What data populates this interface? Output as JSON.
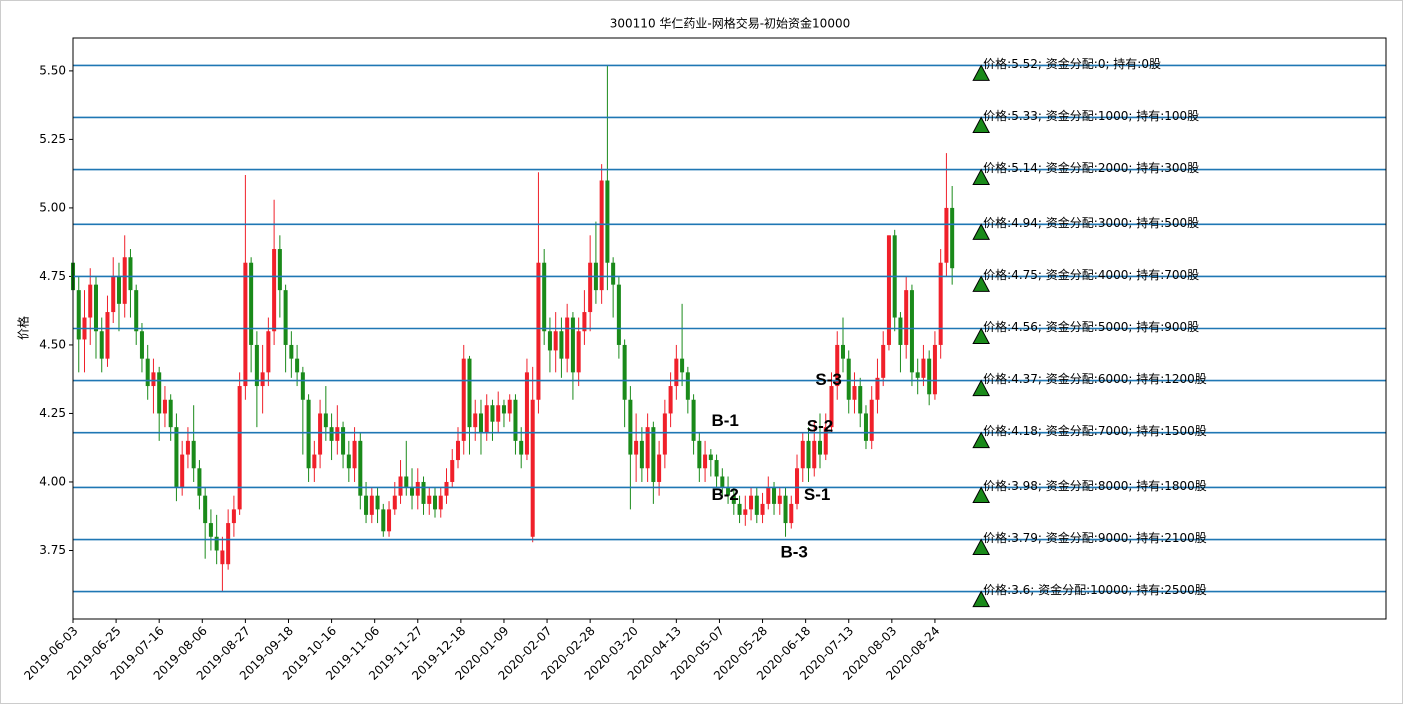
{
  "chart_data": {
    "type": "candlestick",
    "title": "300110 华仁药业-网格交易-初始资金10000",
    "y_label": "价格",
    "xlim": [
      0,
      457
    ],
    "xticks": [
      {
        "value": 0,
        "label": "2019-06-03"
      },
      {
        "value": 15,
        "label": "2019-06-25"
      },
      {
        "value": 30,
        "label": "2019-07-16"
      },
      {
        "value": 45,
        "label": "2019-08-06"
      },
      {
        "value": 60,
        "label": "2019-08-27"
      },
      {
        "value": 75,
        "label": "2019-09-18"
      },
      {
        "value": 90,
        "label": "2019-10-16"
      },
      {
        "value": 105,
        "label": "2019-11-06"
      },
      {
        "value": 120,
        "label": "2019-11-27"
      },
      {
        "value": 135,
        "label": "2019-12-18"
      },
      {
        "value": 150,
        "label": "2020-01-09"
      },
      {
        "value": 165,
        "label": "2020-02-07"
      },
      {
        "value": 180,
        "label": "2020-02-28"
      },
      {
        "value": 195,
        "label": "2020-03-20"
      },
      {
        "value": 210,
        "label": "2020-04-13"
      },
      {
        "value": 225,
        "label": "2020-05-07"
      },
      {
        "value": 240,
        "label": "2020-05-28"
      },
      {
        "value": 255,
        "label": "2020-06-18"
      },
      {
        "value": 270,
        "label": "2020-07-13"
      },
      {
        "value": 285,
        "label": "2020-08-03"
      },
      {
        "value": 300,
        "label": "2020-08-24"
      }
    ],
    "ylim": [
      3.5,
      5.62
    ],
    "yticks": [
      3.75,
      {
        "value": 4.0,
        "label": "4.00"
      },
      4.25,
      {
        "value": 4.5,
        "label": "4.50"
      },
      4.75,
      {
        "value": 5.0,
        "label": "5.00"
      },
      5.25,
      {
        "value": 5.5,
        "label": "5.50"
      }
    ],
    "up_color": "#f0202a",
    "down_color": "#1a8a1a",
    "level_color": "#1f77b4",
    "marker_color": "#1a8a1a",
    "candles": [
      [
        0,
        4.8,
        4.9,
        4.55,
        4.7
      ],
      [
        2,
        4.7,
        4.75,
        4.4,
        4.52
      ],
      [
        4,
        4.52,
        4.7,
        4.4,
        4.6
      ],
      [
        6,
        4.6,
        4.78,
        4.5,
        4.72
      ],
      [
        8,
        4.72,
        4.75,
        4.45,
        4.55
      ],
      [
        10,
        4.55,
        4.6,
        4.4,
        4.45
      ],
      [
        12,
        4.45,
        4.68,
        4.42,
        4.62
      ],
      [
        14,
        4.62,
        4.82,
        4.58,
        4.75
      ],
      [
        16,
        4.75,
        4.8,
        4.55,
        4.65
      ],
      [
        18,
        4.65,
        4.9,
        4.6,
        4.82
      ],
      [
        20,
        4.82,
        4.85,
        4.6,
        4.7
      ],
      [
        22,
        4.7,
        4.72,
        4.5,
        4.55
      ],
      [
        24,
        4.55,
        4.58,
        4.4,
        4.45
      ],
      [
        26,
        4.45,
        4.5,
        4.3,
        4.35
      ],
      [
        28,
        4.35,
        4.45,
        4.25,
        4.4
      ],
      [
        30,
        4.4,
        4.42,
        4.15,
        4.25
      ],
      [
        32,
        4.25,
        4.35,
        4.2,
        4.3
      ],
      [
        34,
        4.3,
        4.32,
        4.15,
        4.2
      ],
      [
        36,
        4.2,
        4.25,
        3.93,
        3.98
      ],
      [
        38,
        3.98,
        4.15,
        3.95,
        4.1
      ],
      [
        40,
        4.1,
        4.2,
        4.05,
        4.15
      ],
      [
        42,
        4.15,
        4.28,
        4.0,
        4.05
      ],
      [
        44,
        4.05,
        4.08,
        3.9,
        3.95
      ],
      [
        46,
        3.95,
        3.98,
        3.72,
        3.85
      ],
      [
        48,
        3.85,
        3.9,
        3.75,
        3.8
      ],
      [
        50,
        3.8,
        3.88,
        3.7,
        3.75
      ],
      [
        52,
        3.7,
        3.8,
        3.6,
        3.75
      ],
      [
        54,
        3.7,
        3.9,
        3.68,
        3.85
      ],
      [
        56,
        3.85,
        3.95,
        3.8,
        3.9
      ],
      [
        58,
        3.9,
        4.4,
        3.88,
        4.35
      ],
      [
        60,
        4.35,
        5.12,
        4.3,
        4.8
      ],
      [
        62,
        4.8,
        4.82,
        4.4,
        4.5
      ],
      [
        64,
        4.5,
        4.55,
        4.2,
        4.35
      ],
      [
        66,
        4.35,
        4.5,
        4.25,
        4.4
      ],
      [
        68,
        4.4,
        4.6,
        4.35,
        4.55
      ],
      [
        70,
        4.55,
        5.03,
        4.5,
        4.85
      ],
      [
        72,
        4.85,
        4.9,
        4.6,
        4.7
      ],
      [
        74,
        4.7,
        4.72,
        4.4,
        4.5
      ],
      [
        76,
        4.5,
        4.55,
        4.38,
        4.45
      ],
      [
        78,
        4.45,
        4.5,
        4.35,
        4.4
      ],
      [
        80,
        4.4,
        4.42,
        4.1,
        4.3
      ],
      [
        82,
        4.3,
        4.32,
        4.0,
        4.05
      ],
      [
        84,
        4.05,
        4.15,
        4.0,
        4.1
      ],
      [
        86,
        4.1,
        4.3,
        4.05,
        4.25
      ],
      [
        88,
        4.25,
        4.35,
        4.15,
        4.2
      ],
      [
        90,
        4.2,
        4.25,
        4.08,
        4.15
      ],
      [
        92,
        4.15,
        4.28,
        4.1,
        4.2
      ],
      [
        94,
        4.2,
        4.22,
        4.05,
        4.1
      ],
      [
        96,
        4.1,
        4.15,
        4.0,
        4.05
      ],
      [
        98,
        4.05,
        4.2,
        4.0,
        4.15
      ],
      [
        100,
        4.15,
        4.18,
        3.9,
        3.95
      ],
      [
        102,
        3.95,
        4.0,
        3.85,
        3.88
      ],
      [
        104,
        3.88,
        3.98,
        3.85,
        3.95
      ],
      [
        106,
        3.95,
        3.98,
        3.85,
        3.9
      ],
      [
        108,
        3.9,
        3.92,
        3.8,
        3.82
      ],
      [
        110,
        3.82,
        3.93,
        3.8,
        3.9
      ],
      [
        112,
        3.9,
        4.0,
        3.88,
        3.95
      ],
      [
        114,
        3.95,
        4.08,
        3.92,
        4.02
      ],
      [
        116,
        4.02,
        4.15,
        3.95,
        3.98
      ],
      [
        118,
        3.98,
        4.05,
        3.9,
        3.95
      ],
      [
        120,
        3.95,
        4.05,
        3.9,
        4.0
      ],
      [
        122,
        4.0,
        4.02,
        3.88,
        3.92
      ],
      [
        124,
        3.92,
        3.98,
        3.88,
        3.95
      ],
      [
        126,
        3.95,
        3.98,
        3.87,
        3.9
      ],
      [
        128,
        3.9,
        3.98,
        3.87,
        3.95
      ],
      [
        130,
        3.95,
        4.05,
        3.92,
        4.0
      ],
      [
        132,
        4.0,
        4.12,
        3.98,
        4.08
      ],
      [
        134,
        4.08,
        4.2,
        4.05,
        4.15
      ],
      [
        136,
        4.15,
        4.5,
        4.1,
        4.45
      ],
      [
        138,
        4.45,
        4.46,
        4.1,
        4.2
      ],
      [
        140,
        4.2,
        4.3,
        4.15,
        4.25
      ],
      [
        142,
        4.25,
        4.3,
        4.1,
        4.18
      ],
      [
        144,
        4.18,
        4.32,
        4.15,
        4.28
      ],
      [
        146,
        4.28,
        4.3,
        4.15,
        4.22
      ],
      [
        148,
        4.22,
        4.33,
        4.18,
        4.28
      ],
      [
        150,
        4.28,
        4.3,
        4.2,
        4.25
      ],
      [
        152,
        4.25,
        4.32,
        4.22,
        4.3
      ],
      [
        154,
        4.3,
        4.32,
        4.1,
        4.15
      ],
      [
        156,
        4.15,
        4.2,
        4.05,
        4.1
      ],
      [
        158,
        4.1,
        4.45,
        4.08,
        4.4
      ],
      [
        160,
        3.8,
        4.42,
        3.78,
        4.3
      ],
      [
        162,
        4.3,
        5.13,
        4.25,
        4.8
      ],
      [
        164,
        4.8,
        4.85,
        4.5,
        4.55
      ],
      [
        166,
        4.55,
        4.6,
        4.4,
        4.48
      ],
      [
        168,
        4.48,
        4.62,
        4.4,
        4.55
      ],
      [
        170,
        4.55,
        4.6,
        4.38,
        4.45
      ],
      [
        172,
        4.45,
        4.65,
        4.4,
        4.6
      ],
      [
        174,
        4.6,
        4.62,
        4.3,
        4.4
      ],
      [
        176,
        4.4,
        4.6,
        4.35,
        4.55
      ],
      [
        178,
        4.55,
        4.7,
        4.5,
        4.62
      ],
      [
        180,
        4.62,
        4.9,
        4.55,
        4.8
      ],
      [
        182,
        4.8,
        4.95,
        4.65,
        4.7
      ],
      [
        184,
        4.7,
        5.16,
        4.65,
        5.1
      ],
      [
        186,
        5.1,
        5.52,
        4.7,
        4.8
      ],
      [
        188,
        4.8,
        4.82,
        4.6,
        4.72
      ],
      [
        190,
        4.72,
        4.75,
        4.45,
        4.5
      ],
      [
        192,
        4.5,
        4.52,
        4.2,
        4.3
      ],
      [
        194,
        4.3,
        4.35,
        3.9,
        4.1
      ],
      [
        196,
        4.1,
        4.25,
        4.0,
        4.15
      ],
      [
        198,
        4.15,
        4.2,
        4.0,
        4.05
      ],
      [
        200,
        4.05,
        4.25,
        4.0,
        4.2
      ],
      [
        202,
        4.2,
        4.22,
        3.92,
        4.0
      ],
      [
        204,
        4.0,
        4.15,
        3.95,
        4.1
      ],
      [
        206,
        4.1,
        4.3,
        4.05,
        4.25
      ],
      [
        208,
        4.25,
        4.4,
        4.2,
        4.35
      ],
      [
        210,
        4.35,
        4.5,
        4.3,
        4.45
      ],
      [
        212,
        4.45,
        4.65,
        4.35,
        4.4
      ],
      [
        214,
        4.4,
        4.42,
        4.25,
        4.3
      ],
      [
        216,
        4.3,
        4.32,
        4.1,
        4.15
      ],
      [
        218,
        4.15,
        4.18,
        4.0,
        4.05
      ],
      [
        220,
        4.05,
        4.15,
        4.0,
        4.1
      ],
      [
        222,
        4.1,
        4.12,
        4.02,
        4.08
      ],
      [
        224,
        4.08,
        4.1,
        3.98,
        4.02
      ],
      [
        226,
        4.02,
        4.05,
        3.95,
        3.98
      ],
      [
        228,
        3.98,
        4.02,
        3.92,
        3.95
      ],
      [
        230,
        3.95,
        3.98,
        3.88,
        3.92
      ],
      [
        232,
        3.92,
        3.95,
        3.85,
        3.88
      ],
      [
        234,
        3.88,
        3.95,
        3.84,
        3.9
      ],
      [
        236,
        3.9,
        3.98,
        3.86,
        3.95
      ],
      [
        238,
        3.95,
        3.98,
        3.85,
        3.88
      ],
      [
        240,
        3.88,
        3.96,
        3.85,
        3.92
      ],
      [
        242,
        3.92,
        4.02,
        3.9,
        3.98
      ],
      [
        244,
        3.98,
        4.0,
        3.88,
        3.92
      ],
      [
        246,
        3.92,
        3.98,
        3.88,
        3.95
      ],
      [
        248,
        3.95,
        3.98,
        3.8,
        3.85
      ],
      [
        250,
        3.85,
        3.95,
        3.83,
        3.92
      ],
      [
        252,
        3.92,
        4.1,
        3.9,
        4.05
      ],
      [
        254,
        4.05,
        4.18,
        4.0,
        4.15
      ],
      [
        256,
        4.15,
        4.2,
        4.0,
        4.05
      ],
      [
        258,
        4.05,
        4.22,
        4.02,
        4.15
      ],
      [
        260,
        4.15,
        4.25,
        4.05,
        4.1
      ],
      [
        262,
        4.1,
        4.25,
        4.08,
        4.2
      ],
      [
        264,
        4.2,
        4.4,
        4.18,
        4.35
      ],
      [
        266,
        4.35,
        4.55,
        4.3,
        4.5
      ],
      [
        268,
        4.5,
        4.6,
        4.4,
        4.45
      ],
      [
        270,
        4.45,
        4.48,
        4.25,
        4.3
      ],
      [
        272,
        4.3,
        4.4,
        4.25,
        4.35
      ],
      [
        274,
        4.35,
        4.38,
        4.2,
        4.25
      ],
      [
        276,
        4.25,
        4.28,
        4.12,
        4.15
      ],
      [
        278,
        4.15,
        4.35,
        4.12,
        4.3
      ],
      [
        280,
        4.3,
        4.45,
        4.25,
        4.38
      ],
      [
        282,
        4.38,
        4.55,
        4.35,
        4.5
      ],
      [
        284,
        4.5,
        4.9,
        4.48,
        4.9
      ],
      [
        286,
        4.9,
        4.92,
        4.55,
        4.6
      ],
      [
        288,
        4.6,
        4.62,
        4.4,
        4.5
      ],
      [
        290,
        4.5,
        4.75,
        4.45,
        4.7
      ],
      [
        292,
        4.7,
        4.72,
        4.35,
        4.4
      ],
      [
        294,
        4.4,
        4.45,
        4.32,
        4.38
      ],
      [
        296,
        4.38,
        4.5,
        4.35,
        4.45
      ],
      [
        298,
        4.45,
        4.48,
        4.28,
        4.32
      ],
      [
        300,
        4.32,
        4.55,
        4.3,
        4.5
      ],
      [
        302,
        4.5,
        4.85,
        4.45,
        4.8
      ],
      [
        304,
        4.8,
        5.2,
        4.75,
        5.0
      ],
      [
        306,
        5.0,
        5.08,
        4.72,
        4.78
      ]
    ],
    "levels": [
      {
        "price": 5.52,
        "label": "价格:5.52; 资金分配:0; 持有:0股"
      },
      {
        "price": 5.33,
        "label": "价格:5.33; 资金分配:1000; 持有:100股"
      },
      {
        "price": 5.14,
        "label": "价格:5.14; 资金分配:2000; 持有:300股"
      },
      {
        "price": 4.94,
        "label": "价格:4.94; 资金分配:3000; 持有:500股"
      },
      {
        "price": 4.75,
        "label": "价格:4.75; 资金分配:4000; 持有:700股"
      },
      {
        "price": 4.56,
        "label": "价格:4.56; 资金分配:5000; 持有:900股"
      },
      {
        "price": 4.37,
        "label": "价格:4.37; 资金分配:6000; 持有:1200股"
      },
      {
        "price": 4.18,
        "label": "价格:4.18; 资金分配:7000; 持有:1500股"
      },
      {
        "price": 3.98,
        "label": "价格:3.98; 资金分配:8000; 持有:1800股"
      },
      {
        "price": 3.79,
        "label": "价格:3.79; 资金分配:9000; 持有:2100股"
      },
      {
        "price": 3.6,
        "label": "价格:3.6; 资金分配:10000; 持有:2500股"
      }
    ],
    "annotations": [
      {
        "text": "B-1",
        "x": 227,
        "y": 4.22,
        "color": "#f03a2a"
      },
      {
        "text": "B-2",
        "x": 227,
        "y": 3.95,
        "color": "#f03a2a"
      },
      {
        "text": "B-3",
        "x": 251,
        "y": 3.74,
        "color": "#f03a2a"
      },
      {
        "text": "S-1",
        "x": 259,
        "y": 3.95,
        "color": "#33ee33"
      },
      {
        "text": "S-2",
        "x": 260,
        "y": 4.2,
        "color": "#33ee33"
      },
      {
        "text": "S-3",
        "x": 263,
        "y": 4.37,
        "color": "#33ee33"
      }
    ]
  }
}
